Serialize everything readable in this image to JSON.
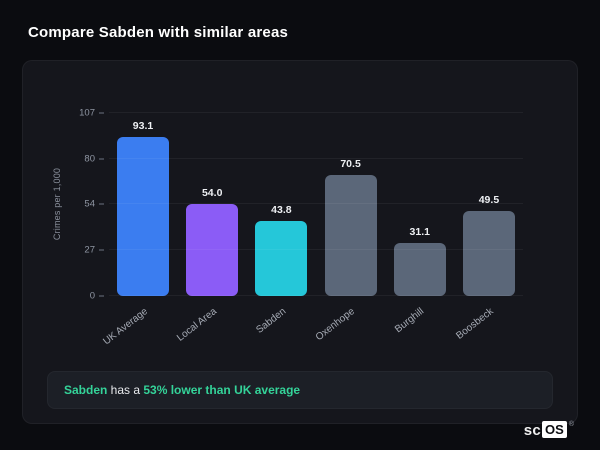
{
  "page": {
    "title": "Compare Sabden with similar areas"
  },
  "chart_data": {
    "type": "bar",
    "title": "",
    "xlabel": "",
    "ylabel": "Crimes per 1,000",
    "ylim": [
      0,
      107
    ],
    "yticks": [
      0,
      27,
      54,
      80,
      107
    ],
    "grid": true,
    "categories": [
      "UK Average",
      "Local Area",
      "Sabden",
      "Oxenhope",
      "Burghill",
      "Boosbeck"
    ],
    "values": [
      93.1,
      54.0,
      43.8,
      70.5,
      31.1,
      49.5
    ],
    "value_labels": [
      "93.1",
      "54.0",
      "43.8",
      "70.5",
      "31.1",
      "49.5"
    ],
    "bar_colors": [
      "#3b7df0",
      "#8b5cf6",
      "#25c7d9",
      "#5b6779",
      "#5b6779",
      "#5b6779"
    ]
  },
  "note": {
    "area": "Sabden",
    "middle": " has a ",
    "highlight": "53% lower than UK average"
  },
  "logo": {
    "prefix": "sc",
    "boxed": "OS",
    "registered": "®"
  },
  "colors": {
    "accent_green": "#34d399",
    "background": "#0b0c10",
    "card_background": "#15161c"
  }
}
